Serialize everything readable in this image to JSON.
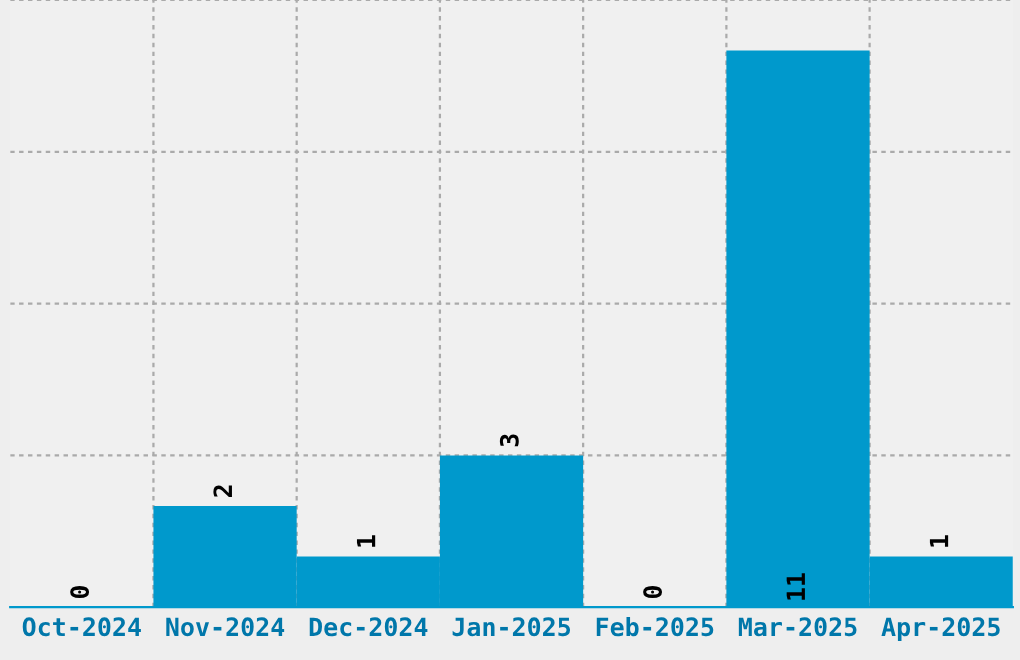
{
  "chart_data": {
    "type": "bar",
    "categories": [
      "Oct-2024",
      "Nov-2024",
      "Dec-2024",
      "Jan-2025",
      "Feb-2025",
      "Mar-2025",
      "Apr-2025"
    ],
    "values": [
      0,
      2,
      1,
      3,
      0,
      11,
      1
    ],
    "color": "#0099cc",
    "ylim": [
      0,
      12
    ],
    "yticks": [
      {
        "value": 0,
        "label": null
      },
      {
        "value": 3,
        "label": null
      },
      {
        "value": 6,
        "label": null
      },
      {
        "value": 9,
        "label": null
      },
      {
        "value": 12,
        "label": null
      }
    ],
    "tick_labels": "x",
    "grid": true,
    "data_labels": true
  }
}
